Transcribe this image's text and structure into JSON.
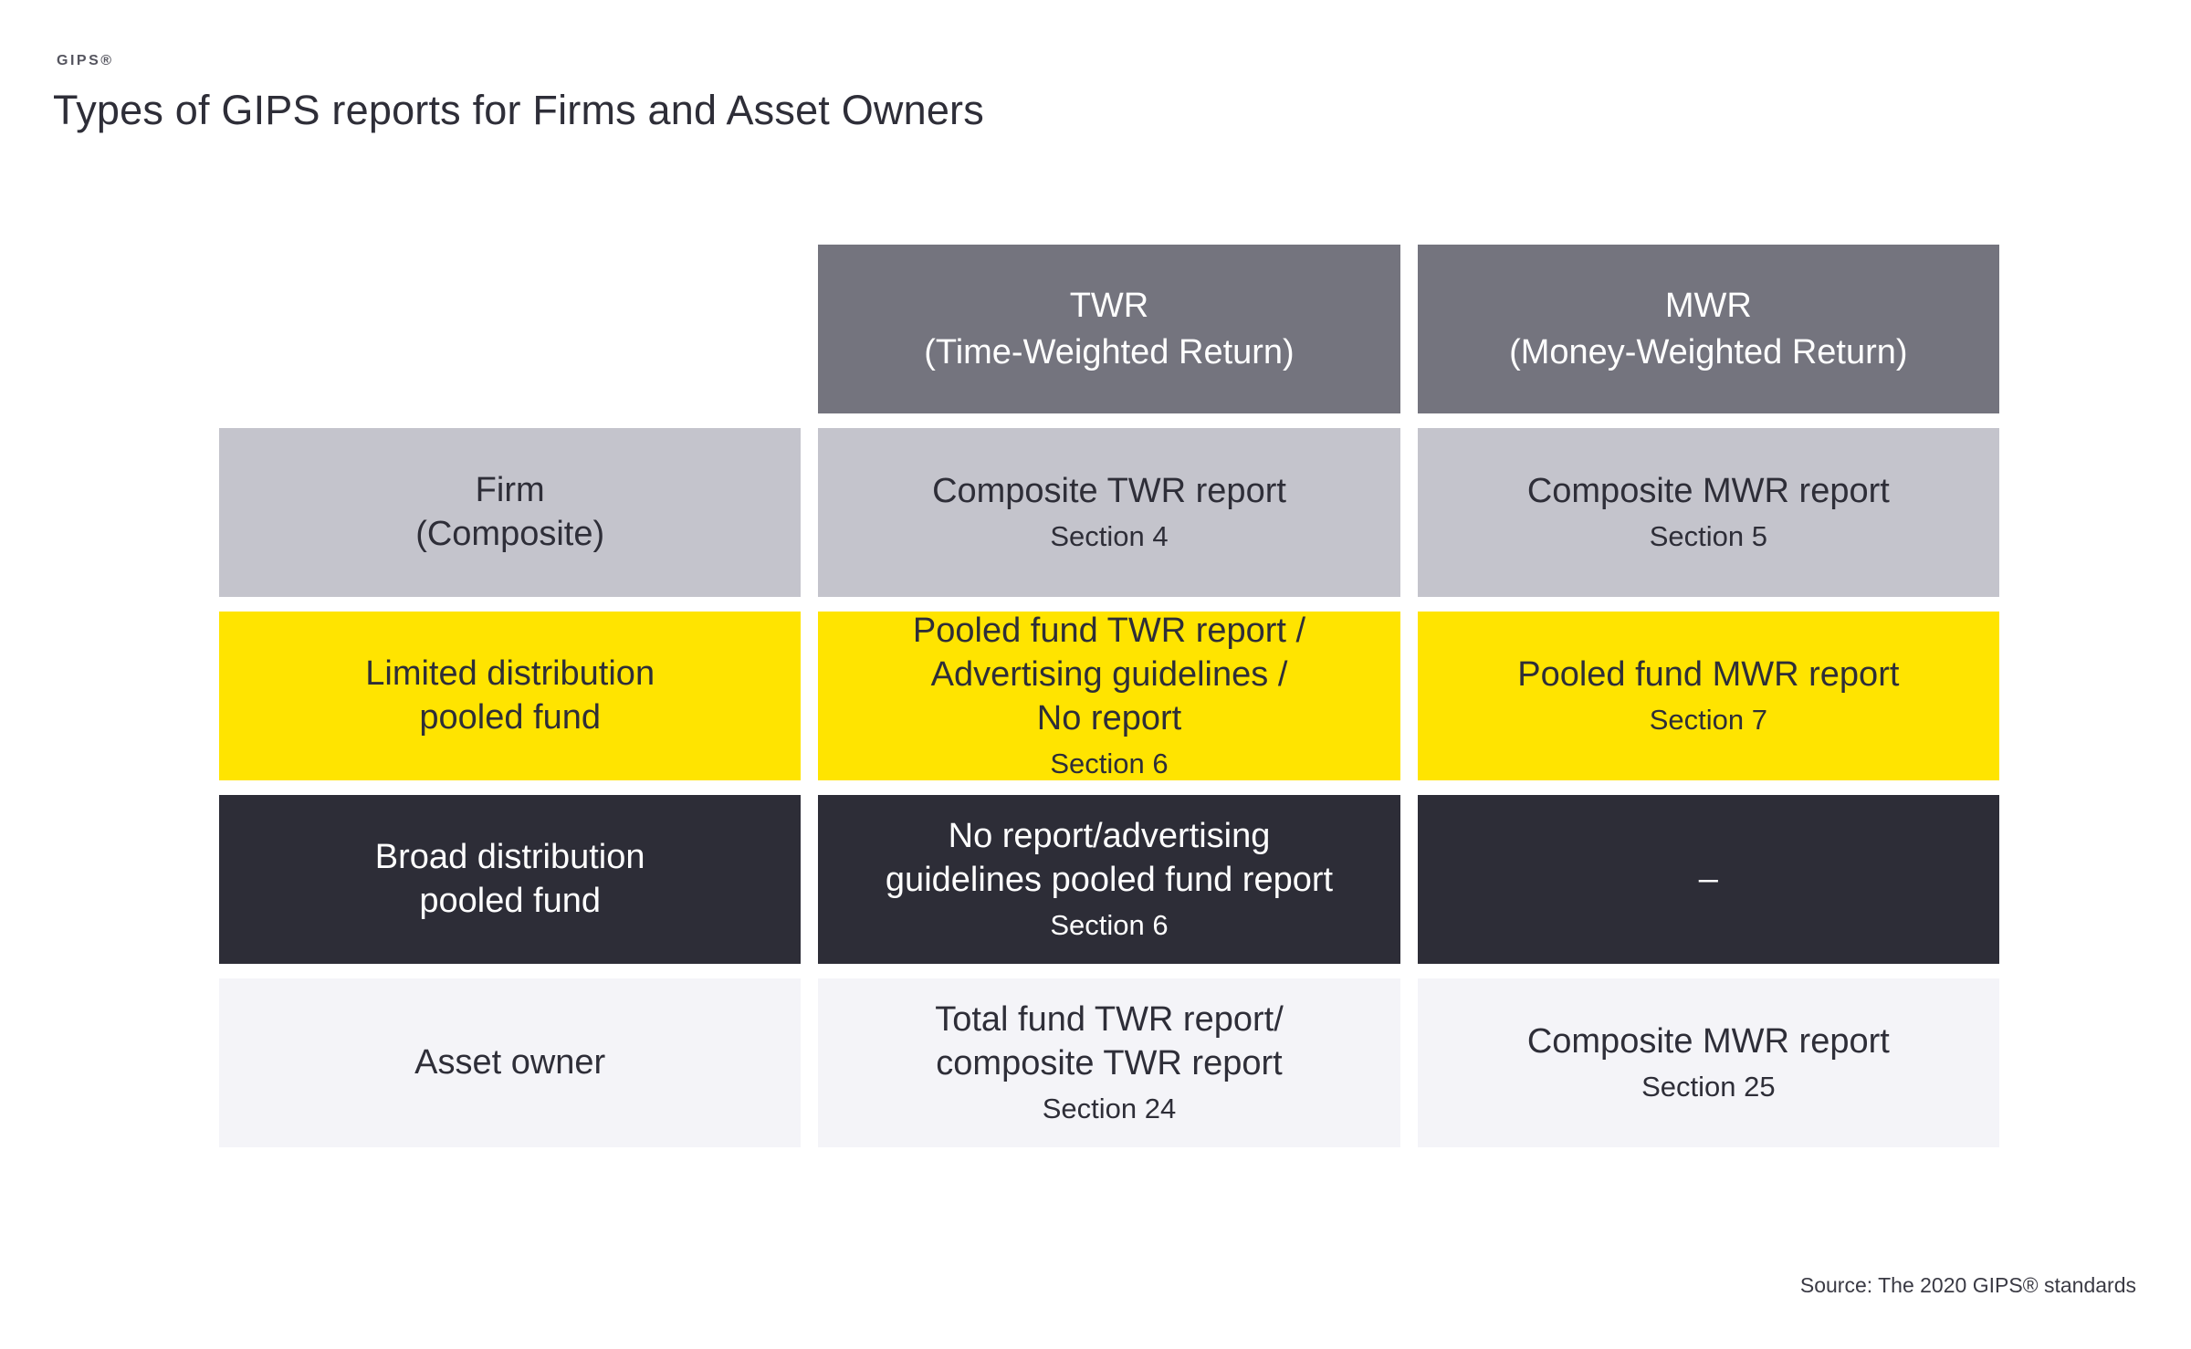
{
  "page": {
    "brand_label": "GIPS®",
    "title": "Types of GIPS reports for Firms and Asset Owners",
    "source_note": "Source: The 2020 GIPS® standards"
  },
  "colors": {
    "header_bg": "#74747e",
    "firm_row_bg": "#c4c4cc",
    "limited_row_bg": "#ffe400",
    "broad_row_bg": "#2d2d37",
    "asset_row_bg": "#f4f4f8",
    "text_dark": "#2e2e38",
    "text_light": "#ffffff"
  },
  "table": {
    "column_headers": [
      {
        "abbr": "TWR",
        "full": "(Time-Weighted Return)"
      },
      {
        "abbr": "MWR",
        "full": "(Money-Weighted Return)"
      }
    ],
    "rows": [
      {
        "label": "Firm\n(Composite)",
        "twr_main": "Composite TWR report",
        "twr_section": "Section 4",
        "mwr_main": "Composite MWR report",
        "mwr_section": "Section 5"
      },
      {
        "label": "Limited distribution\npooled fund",
        "twr_main": "Pooled fund TWR report /\nAdvertising guidelines /\nNo report",
        "twr_section": "Section 6",
        "mwr_main": "Pooled fund MWR report",
        "mwr_section": "Section 7"
      },
      {
        "label": "Broad distribution\npooled fund",
        "twr_main": "No report/advertising\nguidelines pooled fund report",
        "twr_section": "Section 6",
        "mwr_main": "–",
        "mwr_section": ""
      },
      {
        "label": "Asset owner",
        "twr_main": "Total fund TWR report/\ncomposite TWR report",
        "twr_section": "Section 24",
        "mwr_main": "Composite MWR report",
        "mwr_section": "Section 25"
      }
    ]
  }
}
